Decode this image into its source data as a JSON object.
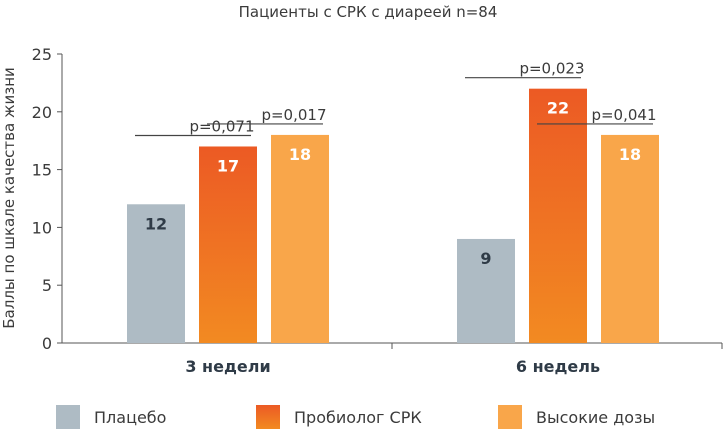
{
  "chart_data": {
    "type": "bar",
    "title": "Пациенты с СРК с диареей n=84",
    "ylabel": "Баллы по шкале качества жизни",
    "xlabel": "",
    "ylim": [
      0,
      25
    ],
    "yticks": [
      0,
      5,
      10,
      15,
      20,
      25
    ],
    "categories": [
      "3 недели",
      "6 недель"
    ],
    "series": [
      {
        "name": "Плацебо",
        "values": [
          12,
          9
        ],
        "color": "#aebbc4",
        "label_color": "#2f3b47"
      },
      {
        "name": "Пробиолог СРК",
        "values": [
          17,
          22
        ],
        "color": "#ec5a24",
        "color_bottom": "#f28a22",
        "label_color": "#ffffff"
      },
      {
        "name": "Высокие дозы",
        "values": [
          18,
          18
        ],
        "color": "#f9a64a",
        "label_color": "#ffffff"
      }
    ],
    "annotations": [
      {
        "category": 0,
        "series": 1,
        "text": "p=0,071"
      },
      {
        "category": 0,
        "series": 2,
        "text": "p=0,017"
      },
      {
        "category": 1,
        "series": 1,
        "text": "p=0,023"
      },
      {
        "category": 1,
        "series": 2,
        "text": "p=0,041"
      }
    ],
    "legend_position": "bottom",
    "grid": false
  }
}
